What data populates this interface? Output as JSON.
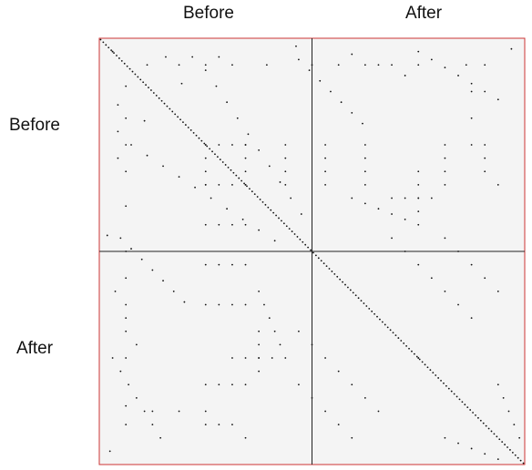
{
  "column_labels": [
    "Before",
    "After"
  ],
  "row_labels": [
    "Before",
    "After"
  ],
  "colors": {
    "frame": "#cc3333",
    "panel_background": "#f4f4f4",
    "divider": "#222222",
    "dot": "#111111"
  },
  "chart_data": {
    "type": "scatter",
    "description_of_matrix": "block recurrence-style matrix with Before/After blocks",
    "n": 160,
    "blocks": [
      "Before",
      "After"
    ],
    "diagonal": true,
    "series": [
      {
        "name": "",
        "points": [
          [
            5,
            5
          ],
          [
            10,
            18
          ],
          [
            17,
            31
          ],
          [
            30,
            10
          ],
          [
            40,
            10
          ],
          [
            50,
            10
          ],
          [
            63,
            10
          ],
          [
            74,
            3
          ],
          [
            80,
            10
          ],
          [
            90,
            10
          ],
          [
            100,
            10
          ],
          [
            110,
            10
          ],
          [
            120,
            10
          ],
          [
            138,
            10
          ],
          [
            145,
            10
          ],
          [
            155,
            4
          ],
          [
            25,
            7
          ],
          [
            35,
            7
          ],
          [
            45,
            7
          ],
          [
            12,
            40
          ],
          [
            18,
            44
          ],
          [
            24,
            48
          ],
          [
            30,
            52
          ],
          [
            36,
            56
          ],
          [
            42,
            60
          ],
          [
            48,
            64
          ],
          [
            54,
            68
          ],
          [
            60,
            72
          ],
          [
            66,
            76
          ],
          [
            8,
            75
          ],
          [
            12,
            79
          ],
          [
            16,
            83
          ],
          [
            20,
            87
          ],
          [
            24,
            91
          ],
          [
            28,
            95
          ],
          [
            32,
            99
          ],
          [
            40,
            40
          ],
          [
            40,
            45
          ],
          [
            40,
            50
          ],
          [
            40,
            55
          ],
          [
            55,
            40
          ],
          [
            55,
            45
          ],
          [
            55,
            50
          ],
          [
            55,
            55
          ],
          [
            70,
            40
          ],
          [
            70,
            45
          ],
          [
            70,
            50
          ],
          [
            70,
            55
          ],
          [
            85,
            40
          ],
          [
            85,
            45
          ],
          [
            85,
            50
          ],
          [
            85,
            55
          ],
          [
            100,
            40
          ],
          [
            100,
            45
          ],
          [
            100,
            50
          ],
          [
            100,
            55
          ],
          [
            120,
            120
          ],
          [
            130,
            40
          ],
          [
            130,
            45
          ],
          [
            130,
            50
          ],
          [
            130,
            55
          ],
          [
            145,
            40
          ],
          [
            145,
            45
          ],
          [
            145,
            50
          ],
          [
            150,
            55
          ],
          [
            6,
            95
          ],
          [
            10,
            105
          ],
          [
            14,
            115
          ],
          [
            50,
            120
          ],
          [
            55,
            120
          ],
          [
            60,
            120
          ],
          [
            65,
            120
          ],
          [
            70,
            120
          ],
          [
            75,
            130
          ],
          [
            80,
            135
          ],
          [
            85,
            140
          ],
          [
            90,
            145
          ],
          [
            95,
            150
          ],
          [
            20,
            140
          ],
          [
            30,
            140
          ],
          [
            40,
            140
          ],
          [
            120,
            5
          ],
          [
            125,
            8
          ],
          [
            130,
            11
          ],
          [
            135,
            14
          ],
          [
            140,
            17
          ],
          [
            145,
            20
          ],
          [
            150,
            23
          ],
          [
            110,
            60
          ],
          [
            115,
            60
          ],
          [
            120,
            60
          ],
          [
            125,
            60
          ],
          [
            110,
            75
          ],
          [
            115,
            80
          ],
          [
            120,
            85
          ],
          [
            125,
            90
          ],
          [
            130,
            95
          ],
          [
            135,
            100
          ],
          [
            140,
            105
          ],
          [
            60,
            95
          ],
          [
            62,
            100
          ],
          [
            64,
            105
          ],
          [
            66,
            110
          ],
          [
            68,
            115
          ],
          [
            150,
            130
          ],
          [
            152,
            135
          ],
          [
            154,
            140
          ],
          [
            156,
            145
          ],
          [
            158,
            150
          ]
        ]
      }
    ],
    "xlim": [
      0,
      160
    ],
    "ylim": [
      0,
      160
    ]
  }
}
